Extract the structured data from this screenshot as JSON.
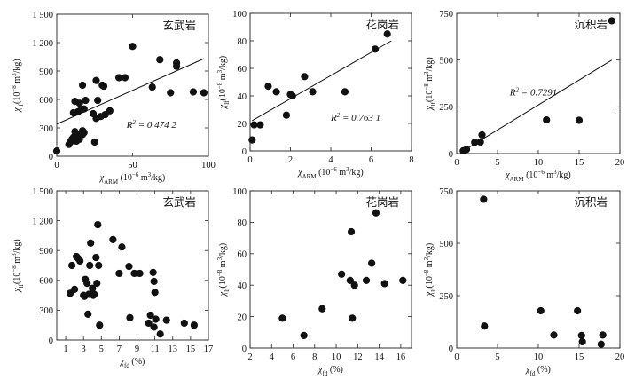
{
  "chart_data": [
    {
      "type": "scatter",
      "panel_title": "玄武岩",
      "x_variable": "χARM",
      "xlabel": "χARM (10⁻⁶ m³/kg)",
      "ylabel": "χlf (10⁻⁸ m³/kg)",
      "xlim": [
        0,
        100
      ],
      "ylim": [
        0,
        1500
      ],
      "xticks": [
        0,
        50,
        100
      ],
      "yticks": [
        0,
        300,
        600,
        900,
        1200,
        1500
      ],
      "yticklabels": [
        "0",
        "300",
        "600",
        "900",
        "1 200",
        "1 500"
      ],
      "r2_label": "R² = 0.474 2",
      "fit": [
        [
          0,
          340
        ],
        [
          97,
          1030
        ]
      ],
      "points": [
        [
          0,
          55
        ],
        [
          8,
          125
        ],
        [
          9,
          150
        ],
        [
          10,
          180
        ],
        [
          11,
          200
        ],
        [
          12,
          260
        ],
        [
          13,
          160
        ],
        [
          14,
          230
        ],
        [
          15,
          180
        ],
        [
          17,
          230
        ],
        [
          17,
          270
        ],
        [
          18,
          250
        ],
        [
          11,
          460
        ],
        [
          12,
          580
        ],
        [
          14,
          470
        ],
        [
          15,
          560
        ],
        [
          16,
          490
        ],
        [
          17,
          750
        ],
        [
          18,
          500
        ],
        [
          19,
          590
        ],
        [
          24,
          450
        ],
        [
          25,
          150
        ],
        [
          26,
          400
        ],
        [
          26,
          800
        ],
        [
          27,
          590
        ],
        [
          29,
          420
        ],
        [
          30,
          750
        ],
        [
          31,
          740
        ],
        [
          32,
          440
        ],
        [
          35,
          480
        ],
        [
          41,
          830
        ],
        [
          45,
          830
        ],
        [
          50,
          1160
        ],
        [
          63,
          730
        ],
        [
          68,
          1020
        ],
        [
          75,
          670
        ],
        [
          79,
          950
        ],
        [
          79,
          985
        ],
        [
          90,
          680
        ],
        [
          97,
          670
        ]
      ]
    },
    {
      "type": "scatter",
      "panel_title": "花岗岩",
      "x_variable": "χARM",
      "xlabel": "χARM (10⁻⁶ m³/kg)",
      "ylabel": "χlf (10⁻⁸ m³/kg)",
      "xlim": [
        0,
        8
      ],
      "ylim": [
        0,
        100
      ],
      "xticks": [
        0,
        2,
        4,
        6,
        8
      ],
      "yticks": [
        0,
        20,
        40,
        60,
        80,
        100
      ],
      "r2_label": "R² = 0.763 1",
      "fit": [
        [
          0.1,
          22
        ],
        [
          7,
          80
        ]
      ],
      "points": [
        [
          0.1,
          8
        ],
        [
          0.2,
          19
        ],
        [
          0.5,
          19
        ],
        [
          0.9,
          47
        ],
        [
          1.3,
          43
        ],
        [
          1.8,
          26
        ],
        [
          2,
          41
        ],
        [
          2.1,
          40
        ],
        [
          2.7,
          54
        ],
        [
          3.1,
          43
        ],
        [
          4.7,
          43
        ],
        [
          6.2,
          74
        ],
        [
          6.8,
          85
        ]
      ]
    },
    {
      "type": "scatter",
      "panel_title": "沉积岩",
      "x_variable": "χARM",
      "xlabel": "χARM (10⁻⁶ m³/kg)",
      "ylabel": "χlf (10⁻⁸ m³/kg)",
      "xlim": [
        0,
        20
      ],
      "ylim": [
        0,
        750
      ],
      "xticks": [
        0,
        5,
        10,
        15,
        20
      ],
      "yticks": [
        0,
        250,
        500,
        750
      ],
      "r2_label": "R² = 0.7291",
      "fit": [
        [
          1,
          20
        ],
        [
          19,
          500
        ]
      ],
      "points": [
        [
          0.8,
          15
        ],
        [
          1.2,
          22
        ],
        [
          2.2,
          60
        ],
        [
          2.9,
          62
        ],
        [
          3.1,
          100
        ],
        [
          11,
          180
        ],
        [
          15,
          178
        ],
        [
          19,
          710
        ]
      ]
    },
    {
      "type": "scatter",
      "panel_title": "玄武岩",
      "x_variable": "χfd",
      "xlabel": "χfd (%)",
      "ylabel": "χlf (10⁻⁸ m³/kg)",
      "xlim": [
        0,
        17
      ],
      "ylim": [
        0,
        1500
      ],
      "xticks": [
        1,
        3,
        5,
        7,
        9,
        11,
        13,
        15,
        17
      ],
      "yticks": [
        0,
        300,
        600,
        900,
        1200,
        1500
      ],
      "yticklabels": [
        "0",
        "300",
        "600",
        "900",
        "1 200",
        "1 500"
      ],
      "points": [
        [
          1.5,
          470
        ],
        [
          1.7,
          750
        ],
        [
          2.0,
          510
        ],
        [
          2.2,
          840
        ],
        [
          2.4,
          820
        ],
        [
          2.6,
          795
        ],
        [
          3.0,
          450
        ],
        [
          3.1,
          440
        ],
        [
          3.2,
          610
        ],
        [
          3.4,
          570
        ],
        [
          3.5,
          260
        ],
        [
          3.6,
          460
        ],
        [
          3.7,
          750
        ],
        [
          3.8,
          975
        ],
        [
          4.0,
          520
        ],
        [
          4.1,
          450
        ],
        [
          4.2,
          460
        ],
        [
          4.4,
          830
        ],
        [
          4.5,
          570
        ],
        [
          4.6,
          1160
        ],
        [
          4.7,
          750
        ],
        [
          4.8,
          150
        ],
        [
          6.3,
          1010
        ],
        [
          7.0,
          670
        ],
        [
          7.3,
          935
        ],
        [
          8.2,
          225
        ],
        [
          8.1,
          740
        ],
        [
          8.7,
          670
        ],
        [
          9.3,
          670
        ],
        [
          10.3,
          170
        ],
        [
          10.5,
          250
        ],
        [
          10.8,
          680
        ],
        [
          10.9,
          590
        ],
        [
          10.9,
          130
        ],
        [
          11.0,
          480
        ],
        [
          11.1,
          210
        ],
        [
          11.6,
          60
        ],
        [
          12.3,
          200
        ],
        [
          14.3,
          170
        ],
        [
          15.4,
          150
        ]
      ]
    },
    {
      "type": "scatter",
      "panel_title": "花岗岩",
      "x_variable": "χfd",
      "xlabel": "χfd (%)",
      "ylabel": "χlf (10⁻⁸ m³/kg)",
      "xlim": [
        2,
        17
      ],
      "ylim": [
        0,
        100
      ],
      "xticks": [
        2,
        4,
        6,
        8,
        10,
        12,
        14,
        16
      ],
      "yticks": [
        0,
        20,
        40,
        60,
        80,
        100
      ],
      "points": [
        [
          5,
          19
        ],
        [
          7,
          8
        ],
        [
          8.7,
          25
        ],
        [
          10.5,
          47
        ],
        [
          11.3,
          43
        ],
        [
          11.4,
          74
        ],
        [
          11.5,
          19
        ],
        [
          11.7,
          40
        ],
        [
          12.8,
          43
        ],
        [
          13.3,
          54
        ],
        [
          13.7,
          86
        ],
        [
          14.5,
          41
        ],
        [
          16.2,
          43
        ]
      ]
    },
    {
      "type": "scatter",
      "panel_title": "沉积岩",
      "x_variable": "χfd",
      "xlabel": "χfd (%)",
      "ylabel": "χlf (10⁻⁸ m³/kg)",
      "xlim": [
        0,
        20
      ],
      "ylim": [
        0,
        750
      ],
      "xticks": [
        0,
        5,
        10,
        15,
        20
      ],
      "yticks": [
        0,
        250,
        500,
        750
      ],
      "points": [
        [
          3.3,
          710
        ],
        [
          3.4,
          105
        ],
        [
          10.3,
          178
        ],
        [
          11.9,
          62
        ],
        [
          14.8,
          178
        ],
        [
          15.3,
          60
        ],
        [
          15.4,
          30
        ],
        [
          17.7,
          18
        ],
        [
          17.9,
          62
        ]
      ]
    }
  ]
}
